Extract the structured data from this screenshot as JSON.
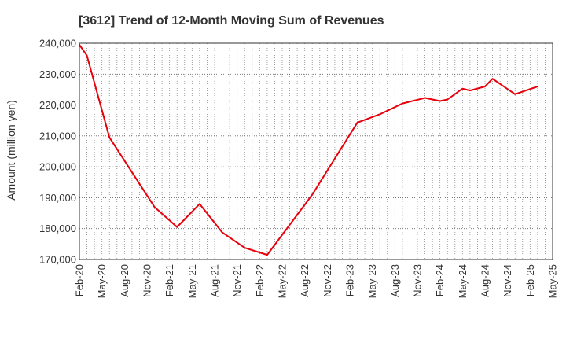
{
  "chart_data": {
    "type": "line",
    "title": "[3612]  Trend of 12-Month Moving Sum of Revenues",
    "ylabel": "Amount (million yen)",
    "xlabel": "",
    "ylim": [
      170000,
      240000
    ],
    "yticks": [
      170000,
      180000,
      190000,
      200000,
      210000,
      220000,
      230000,
      240000
    ],
    "ytick_labels": [
      "170,000",
      "180,000",
      "190,000",
      "200,000",
      "210,000",
      "220,000",
      "230,000",
      "240,000"
    ],
    "x_tick_labels": [
      "Feb-20",
      "May-20",
      "Aug-20",
      "Nov-20",
      "Feb-21",
      "May-21",
      "Aug-21",
      "Nov-21",
      "Feb-22",
      "May-22",
      "Aug-22",
      "Nov-22",
      "Feb-23",
      "May-23",
      "Aug-23",
      "Nov-23",
      "Feb-24",
      "May-24",
      "Aug-24",
      "Nov-24",
      "Feb-25",
      "May-25"
    ],
    "x_range_months": [
      0,
      63
    ],
    "grid": true,
    "line_color": "#e8000b",
    "series": [
      {
        "name": "",
        "points": [
          {
            "x": "Feb-20",
            "m": 0,
            "y": 239500
          },
          {
            "x": "Mar-20",
            "m": 1,
            "y": 236000
          },
          {
            "x": "May-20",
            "m": 4,
            "y": 209500
          },
          {
            "x": "Nov-20",
            "m": 10,
            "y": 187000
          },
          {
            "x": "Feb-21",
            "m": 13,
            "y": 180500
          },
          {
            "x": "May-21",
            "m": 16,
            "y": 188000
          },
          {
            "x": "Aug-21",
            "m": 19,
            "y": 178800
          },
          {
            "x": "Nov-21",
            "m": 22,
            "y": 173800
          },
          {
            "x": "Feb-22",
            "m": 25,
            "y": 171500
          },
          {
            "x": "Aug-22",
            "m": 31,
            "y": 191000
          },
          {
            "x": "Feb-23",
            "m": 37,
            "y": 214300
          },
          {
            "x": "May-23",
            "m": 40,
            "y": 217000
          },
          {
            "x": "Aug-23",
            "m": 43,
            "y": 220500
          },
          {
            "x": "Nov-23",
            "m": 46,
            "y": 222300
          },
          {
            "x": "Jan-24",
            "m": 48,
            "y": 221300
          },
          {
            "x": "Feb-24",
            "m": 49,
            "y": 221800
          },
          {
            "x": "Apr-24",
            "m": 51,
            "y": 225300
          },
          {
            "x": "May-24",
            "m": 52,
            "y": 224700
          },
          {
            "x": "Jul-24",
            "m": 54,
            "y": 226000
          },
          {
            "x": "Aug-24",
            "m": 55,
            "y": 228500
          },
          {
            "x": "Nov-24",
            "m": 58,
            "y": 223500
          },
          {
            "x": "Feb-25",
            "m": 61,
            "y": 226000
          }
        ]
      }
    ]
  }
}
